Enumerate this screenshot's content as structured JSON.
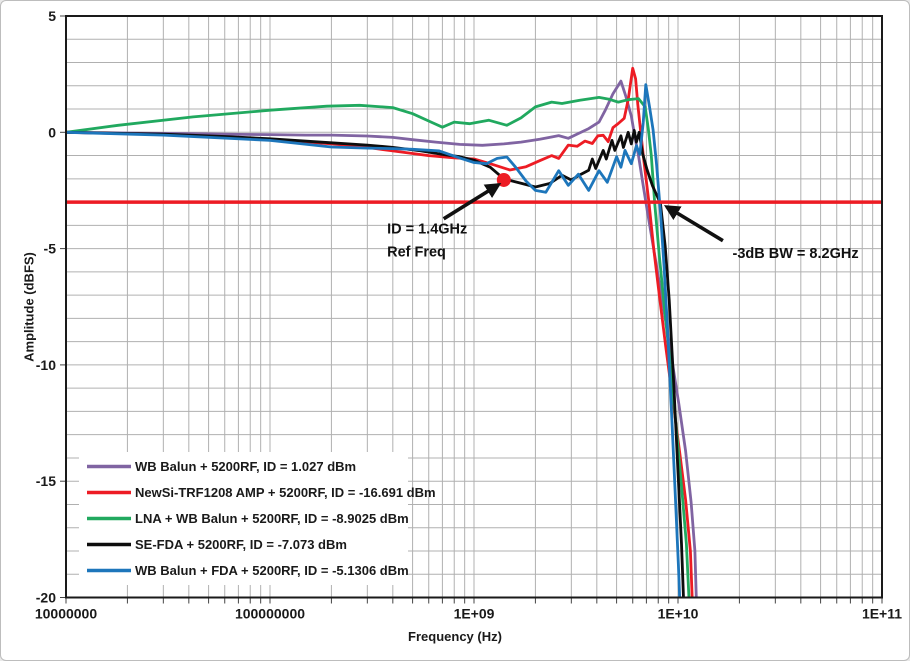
{
  "window": {
    "background": "#ffffff",
    "border_color": "#bdbdbd"
  },
  "chart_data": {
    "type": "line",
    "x_axis": {
      "label": "Frequency (Hz)",
      "scale": "log",
      "min": 10000000.0,
      "max": 100000000000.0,
      "ticks": [
        {
          "value": 10000000.0,
          "label": "10000000"
        },
        {
          "value": 100000000.0,
          "label": "100000000"
        },
        {
          "value": 1000000000.0,
          "label": "1E+09"
        },
        {
          "value": 10000000000.0,
          "label": "1E+10"
        },
        {
          "value": 100000000000.0,
          "label": "1E+11"
        }
      ]
    },
    "y_axis": {
      "label": "Amplitude (dBFS)",
      "min": -20,
      "max": 5,
      "ticks": [
        5,
        0,
        -5,
        -10,
        -15,
        -20
      ],
      "minor_grid_step": 1
    },
    "grid": {
      "on": true,
      "color": "#b0b0b0"
    },
    "frame_color": "#1a1a1a",
    "text_color": "#1a1a1a",
    "ref_line": {
      "value": -3,
      "color": "#ed1c24"
    },
    "marker_point": {
      "x": 1400000000.0,
      "y": -2.05,
      "color": "#ed1c24"
    },
    "legend": {
      "position": "bottom-left"
    },
    "series": [
      {
        "name": "WB Balun + 5200RF, ID =  1.027 dBm",
        "color": "#8064a2",
        "points": [
          [
            10000000.0,
            0
          ],
          [
            20000000.0,
            -0.03
          ],
          [
            40000000.0,
            -0.06
          ],
          [
            70000000.0,
            -0.09
          ],
          [
            100000000.0,
            -0.1
          ],
          [
            150000000.0,
            -0.12
          ],
          [
            200000000.0,
            -0.12
          ],
          [
            300000000.0,
            -0.16
          ],
          [
            400000000.0,
            -0.22
          ],
          [
            500000000.0,
            -0.32
          ],
          [
            650000000.0,
            -0.42
          ],
          [
            850000000.0,
            -0.52
          ],
          [
            1100000000.0,
            -0.56
          ],
          [
            1400000000.0,
            -0.5
          ],
          [
            1700000000.0,
            -0.42
          ],
          [
            2100000000.0,
            -0.3
          ],
          [
            2400000000.0,
            -0.2
          ],
          [
            2600000000.0,
            -0.14
          ],
          [
            2900000000.0,
            -0.26
          ],
          [
            3250000000.0,
            -0.05
          ],
          [
            3650000000.0,
            0.16
          ],
          [
            4100000000.0,
            0.44
          ],
          [
            4400000000.0,
            0.95
          ],
          [
            4800000000.0,
            1.66
          ],
          [
            5250000000.0,
            2.2
          ],
          [
            5550000000.0,
            1.55
          ],
          [
            5900000000.0,
            0.7
          ],
          [
            6150000000.0,
            -0.2
          ],
          [
            6400000000.0,
            -1.0
          ],
          [
            6700000000.0,
            -2.1
          ],
          [
            7050000000.0,
            -3.3
          ],
          [
            7700000000.0,
            -5.3
          ],
          [
            8400000000.0,
            -7.3
          ],
          [
            9300000000.0,
            -9.7
          ],
          [
            10100000000.0,
            -11.7
          ],
          [
            10900000000.0,
            -13.7
          ],
          [
            11600000000.0,
            -15.9
          ],
          [
            12100000000.0,
            -18.0
          ],
          [
            12350000000.0,
            -20.6
          ]
        ]
      },
      {
        "name": "NewSi-TRF1208 AMP + 5200RF, ID =  -16.691 dBm",
        "color": "#ed1c24",
        "points": [
          [
            10000000.0,
            0
          ],
          [
            30000000.0,
            -0.1
          ],
          [
            60000000.0,
            -0.2
          ],
          [
            100000000.0,
            -0.3
          ],
          [
            200000000.0,
            -0.5
          ],
          [
            300000000.0,
            -0.65
          ],
          [
            400000000.0,
            -0.8
          ],
          [
            600000000.0,
            -1.0
          ],
          [
            800000000.0,
            -1.1
          ],
          [
            1000000000.0,
            -1.15
          ],
          [
            1200000000.0,
            -1.35
          ],
          [
            1500000000.0,
            -1.62
          ],
          [
            1800000000.0,
            -1.48
          ],
          [
            2100000000.0,
            -1.22
          ],
          [
            2400000000.0,
            -1.0
          ],
          [
            2600000000.0,
            -1.12
          ],
          [
            2900000000.0,
            -0.55
          ],
          [
            3200000000.0,
            -0.6
          ],
          [
            3500000000.0,
            -0.38
          ],
          [
            3800000000.0,
            -0.48
          ],
          [
            4050000000.0,
            -0.15
          ],
          [
            4300000000.0,
            -0.13
          ],
          [
            4550000000.0,
            -0.4
          ],
          [
            4800000000.0,
            0.2
          ],
          [
            5100000000.0,
            0.38
          ],
          [
            5450000000.0,
            0.6
          ],
          [
            5700000000.0,
            1.4
          ],
          [
            6000000000.0,
            2.75
          ],
          [
            6200000000.0,
            2.3
          ],
          [
            6350000000.0,
            1.2
          ],
          [
            6550000000.0,
            0.1
          ],
          [
            6800000000.0,
            -1.2
          ],
          [
            7200000000.0,
            -3.0
          ],
          [
            7600000000.0,
            -5.0
          ],
          [
            8100000000.0,
            -7.0
          ],
          [
            8700000000.0,
            -9.2
          ],
          [
            9400000000.0,
            -11.4
          ],
          [
            10200000000.0,
            -13.8
          ],
          [
            10900000000.0,
            -15.8
          ],
          [
            11500000000.0,
            -18.0
          ],
          [
            11800000000.0,
            -20.6
          ]
        ]
      },
      {
        "name": "LNA + WB Balun + 5200RF, ID =  -8.9025 dBm",
        "color": "#21a95f",
        "points": [
          [
            10000000.0,
            0
          ],
          [
            18000000.0,
            0.3
          ],
          [
            42000000.0,
            0.66
          ],
          [
            100000000.0,
            0.95
          ],
          [
            190000000.0,
            1.12
          ],
          [
            275000000.0,
            1.16
          ],
          [
            400000000.0,
            1.06
          ],
          [
            500000000.0,
            0.8
          ],
          [
            630000000.0,
            0.4
          ],
          [
            700000000.0,
            0.22
          ],
          [
            800000000.0,
            0.44
          ],
          [
            950000000.0,
            0.37
          ],
          [
            1180000000.0,
            0.52
          ],
          [
            1450000000.0,
            0.3
          ],
          [
            1700000000.0,
            0.62
          ],
          [
            2000000000.0,
            1.09
          ],
          [
            2400000000.0,
            1.3
          ],
          [
            2700000000.0,
            1.24
          ],
          [
            3300000000.0,
            1.38
          ],
          [
            4100000000.0,
            1.5
          ],
          [
            4600000000.0,
            1.42
          ],
          [
            5100000000.0,
            1.3
          ],
          [
            5700000000.0,
            1.4
          ],
          [
            6400000000.0,
            1.45
          ],
          [
            6900000000.0,
            1.1
          ],
          [
            7150000000.0,
            0.15
          ],
          [
            7400000000.0,
            -1.0
          ],
          [
            7700000000.0,
            -3.1
          ],
          [
            8100000000.0,
            -5.3
          ],
          [
            8600000000.0,
            -7.6
          ],
          [
            9200000000.0,
            -10.1
          ],
          [
            9900000000.0,
            -13.1
          ],
          [
            10500000000.0,
            -15.6
          ],
          [
            11000000000.0,
            -17.7
          ],
          [
            11400000000.0,
            -20.6
          ]
        ]
      },
      {
        "name": "SE-FDA + 5200RF, ID =  -7.073 dBm",
        "color": "#0d0d0d",
        "points": [
          [
            10000000.0,
            0
          ],
          [
            30000000.0,
            -0.08
          ],
          [
            60000000.0,
            -0.18
          ],
          [
            100000000.0,
            -0.28
          ],
          [
            200000000.0,
            -0.45
          ],
          [
            300000000.0,
            -0.55
          ],
          [
            400000000.0,
            -0.65
          ],
          [
            550000000.0,
            -0.8
          ],
          [
            700000000.0,
            -0.95
          ],
          [
            850000000.0,
            -1.05
          ],
          [
            1000000000.0,
            -1.2
          ],
          [
            1200000000.0,
            -1.5
          ],
          [
            1400000000.0,
            -2.0
          ],
          [
            1720000000.0,
            -2.2
          ],
          [
            2000000000.0,
            -2.35
          ],
          [
            2350000000.0,
            -2.2
          ],
          [
            2700000000.0,
            -1.85
          ],
          [
            3000000000.0,
            -2.05
          ],
          [
            3350000000.0,
            -1.8
          ],
          [
            3650000000.0,
            -1.63
          ],
          [
            3800000000.0,
            -1.15
          ],
          [
            3950000000.0,
            -1.55
          ],
          [
            4300000000.0,
            -0.78
          ],
          [
            4450000000.0,
            -1.15
          ],
          [
            4750000000.0,
            -0.35
          ],
          [
            4900000000.0,
            -0.78
          ],
          [
            5250000000.0,
            -0.15
          ],
          [
            5400000000.0,
            -0.65
          ],
          [
            5700000000.0,
            0.0
          ],
          [
            5900000000.0,
            -0.5
          ],
          [
            6100000000.0,
            0.08
          ],
          [
            6250000000.0,
            -0.42
          ],
          [
            6450000000.0,
            0.0
          ],
          [
            6700000000.0,
            -0.9
          ],
          [
            7050000000.0,
            -1.6
          ],
          [
            7500000000.0,
            -2.3
          ],
          [
            8200000000.0,
            -3.05
          ],
          [
            8650000000.0,
            -4.9
          ],
          [
            9050000000.0,
            -7.2
          ],
          [
            9500000000.0,
            -10.6
          ],
          [
            10000000000.0,
            -14.6
          ],
          [
            10400000000.0,
            -17.7
          ],
          [
            10700000000.0,
            -20.6
          ]
        ]
      },
      {
        "name": "WB Balun + FDA + 5200RF, ID =  -5.1306 dBm",
        "color": "#1d76bb",
        "points": [
          [
            10000000.0,
            0
          ],
          [
            30000000.0,
            -0.12
          ],
          [
            60000000.0,
            -0.25
          ],
          [
            100000000.0,
            -0.35
          ],
          [
            200000000.0,
            -0.63
          ],
          [
            300000000.0,
            -0.68
          ],
          [
            400000000.0,
            -0.7
          ],
          [
            500000000.0,
            -0.73
          ],
          [
            675000000.0,
            -0.8
          ],
          [
            850000000.0,
            -1.1
          ],
          [
            1000000000.0,
            -1.3
          ],
          [
            1150000000.0,
            -1.35
          ],
          [
            1300000000.0,
            -1.12
          ],
          [
            1450000000.0,
            -1.06
          ],
          [
            1600000000.0,
            -1.5
          ],
          [
            1800000000.0,
            -2.1
          ],
          [
            2000000000.0,
            -2.5
          ],
          [
            2250000000.0,
            -2.58
          ],
          [
            2600000000.0,
            -1.65
          ],
          [
            2900000000.0,
            -2.28
          ],
          [
            3250000000.0,
            -1.8
          ],
          [
            3650000000.0,
            -2.5
          ],
          [
            4100000000.0,
            -1.65
          ],
          [
            4500000000.0,
            -2.15
          ],
          [
            5000000000.0,
            -1.05
          ],
          [
            5250000000.0,
            -1.5
          ],
          [
            5500000000.0,
            -0.78
          ],
          [
            5900000000.0,
            -1.35
          ],
          [
            6250000000.0,
            -0.58
          ],
          [
            6500000000.0,
            -0.95
          ],
          [
            6750000000.0,
            0.4
          ],
          [
            6950000000.0,
            2.05
          ],
          [
            7250000000.0,
            1.1
          ],
          [
            7550000000.0,
            0.1
          ],
          [
            7850000000.0,
            -1.4
          ],
          [
            8200000000.0,
            -3.4
          ],
          [
            8550000000.0,
            -5.8
          ],
          [
            8900000000.0,
            -8.6
          ],
          [
            9300000000.0,
            -12.1
          ],
          [
            9700000000.0,
            -15.6
          ],
          [
            10050000000.0,
            -18.6
          ],
          [
            10250000000.0,
            -20.6
          ]
        ]
      }
    ],
    "annotations": [
      {
        "id": "ref-freq-note",
        "lines": [
          "ID = 1.4GHz",
          "Ref Freq"
        ],
        "text_x": 375000000.0,
        "text_y": -4.35,
        "arrow": {
          "from_x": 710000000.0,
          "from_y": -3.72,
          "to_x": 1320000000.0,
          "to_y": -2.25
        }
      },
      {
        "id": "bw-note",
        "lines": [
          "-3dB BW = 8.2GHz"
        ],
        "text_x": 18500000000.0,
        "text_y": -5.4,
        "arrow": {
          "from_x": 16600000000.0,
          "from_y": -4.66,
          "to_x": 8800000000.0,
          "to_y": -3.2
        }
      }
    ]
  }
}
